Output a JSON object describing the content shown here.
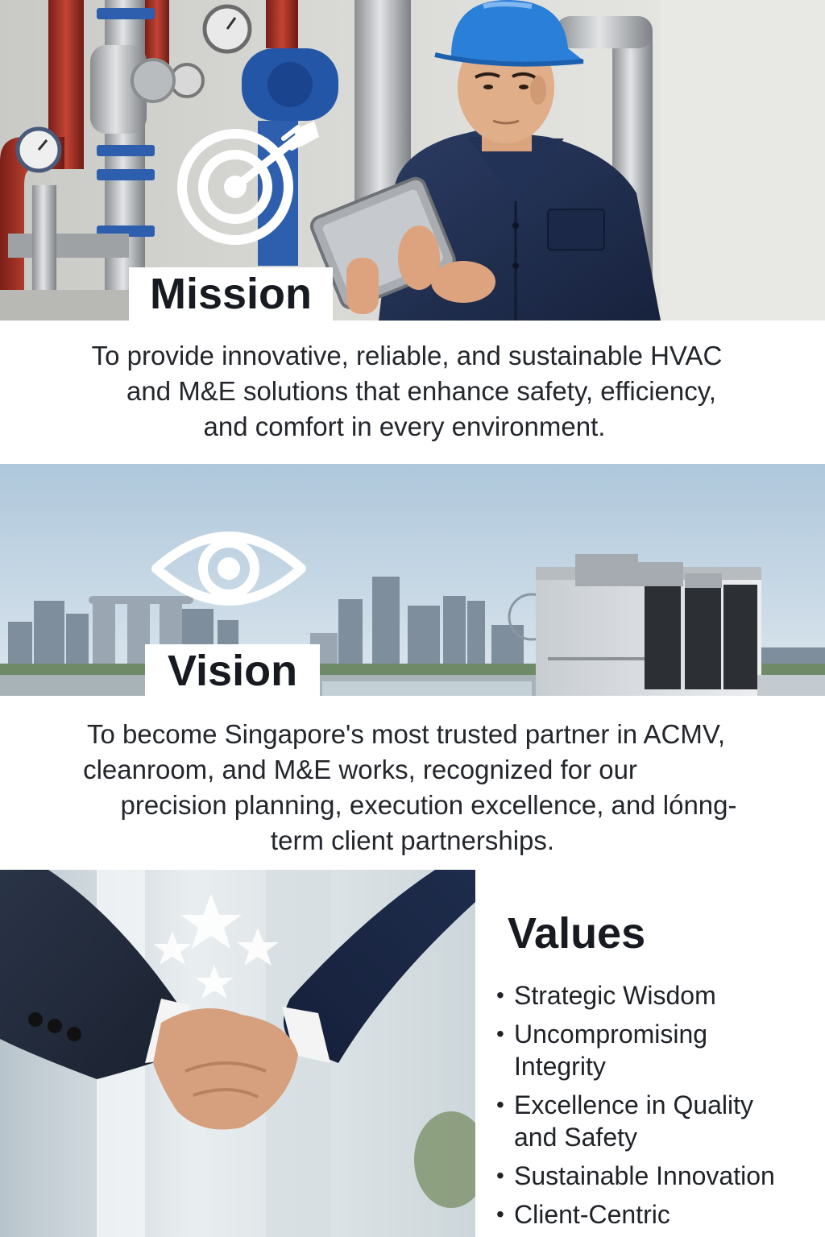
{
  "mission": {
    "title": "Mission",
    "lines": [
      "To provide innovative, reliable, and sustainable HVAC",
      "and M&E solutions that enhance safety, efficiency,",
      "and comfort in every environment."
    ],
    "icon": "target-icon"
  },
  "vision": {
    "title": "Vision",
    "lines": [
      "To become Singapore's most trusted partner in ACMV,",
      "cleanroom, and M&E works, recognized for our",
      "precision planning, execution excellence, and lónng-",
      "term client partnerships."
    ],
    "icon": "eye-icon"
  },
  "values": {
    "title": "Values",
    "items": [
      "Strategic Wisdom",
      "Uncompromising Integrity",
      "Excellence in Quality and Safety",
      "Sustainable Innovation",
      "Client-Centric"
    ],
    "icon": "stars-icon"
  },
  "colors": {
    "navy": "#1f2f52",
    "helmet_blue": "#2a7fd8",
    "pipe_red": "#b6382a",
    "sky": "#bfd3e4"
  }
}
